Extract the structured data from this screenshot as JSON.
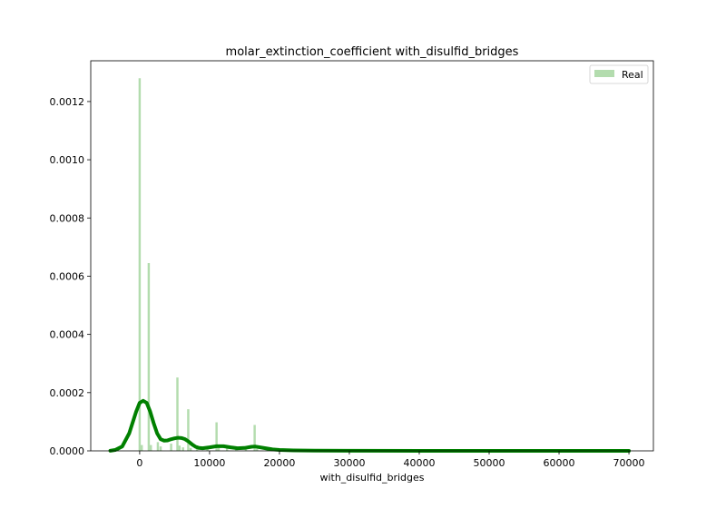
{
  "chart_data": {
    "type": "histogram",
    "title": "molar_extinction_coefficient  with_disulfid_bridges",
    "xlabel": "with_disulfid_bridges",
    "ylabel": "",
    "xlim": [
      -7000,
      73500
    ],
    "ylim": [
      0,
      0.00134
    ],
    "x_ticks": [
      0,
      10000,
      20000,
      30000,
      40000,
      50000,
      60000,
      70000
    ],
    "x_tick_labels": [
      "0",
      "10000",
      "20000",
      "30000",
      "40000",
      "50000",
      "60000",
      "70000"
    ],
    "y_ticks": [
      0,
      0.0002,
      0.0004,
      0.0006,
      0.0008,
      0.001,
      0.0012
    ],
    "y_tick_labels": [
      "0.0000",
      "0.0002",
      "0.0004",
      "0.0006",
      "0.0008",
      "0.0010",
      "0.0012"
    ],
    "legend": {
      "position": "upper right",
      "entries": [
        {
          "label": "Real",
          "color": "#b3dcae"
        }
      ]
    },
    "bar_color": "#b3dcae",
    "kde_color": "#008000",
    "grid": false,
    "histogram": {
      "bin_width": 320,
      "bars": [
        {
          "x": 0,
          "value": 0.00128
        },
        {
          "x": 1300,
          "value": 0.000645
        },
        {
          "x": 5400,
          "value": 0.000252
        },
        {
          "x": 6950,
          "value": 0.000143
        },
        {
          "x": 11000,
          "value": 9.8e-05
        },
        {
          "x": 16450,
          "value": 8.9e-05
        },
        {
          "x": 300,
          "value": 2e-05
        },
        {
          "x": 1600,
          "value": 2e-05
        },
        {
          "x": 2600,
          "value": 3e-05
        },
        {
          "x": 3000,
          "value": 1.5e-05
        },
        {
          "x": 4500,
          "value": 2.5e-05
        },
        {
          "x": 5700,
          "value": 1.8e-05
        },
        {
          "x": 6200,
          "value": 1.2e-05
        },
        {
          "x": 7300,
          "value": 1e-05
        },
        {
          "x": 8200,
          "value": 8e-06
        },
        {
          "x": 9700,
          "value": 6e-06
        },
        {
          "x": 11300,
          "value": 1e-05
        },
        {
          "x": 12500,
          "value": 1.4e-05
        },
        {
          "x": 13800,
          "value": 6e-06
        },
        {
          "x": 15200,
          "value": 5e-06
        },
        {
          "x": 16800,
          "value": 7e-06
        }
      ]
    },
    "kde": {
      "x": [
        -4200,
        -3500,
        -2500,
        -1500,
        -500,
        0,
        500,
        1000,
        1500,
        2000,
        2500,
        3000,
        3500,
        4000,
        4500,
        5000,
        5500,
        6000,
        6500,
        7000,
        7500,
        8000,
        8500,
        9000,
        10000,
        11000,
        12000,
        13000,
        14000,
        15000,
        16000,
        16500,
        17000,
        18000,
        19000,
        20000,
        22000,
        25000,
        30000,
        40000,
        50000,
        60000,
        70000
      ],
      "y": [
        5e-07,
        3e-06,
        1.5e-05,
        6e-05,
        0.000135,
        0.000165,
        0.000172,
        0.000165,
        0.000135,
        9.5e-05,
        6e-05,
        4e-05,
        3.5e-05,
        3.6e-05,
        4e-05,
        4.3e-05,
        4.5e-05,
        4.4e-05,
        4e-05,
        3.2e-05,
        2.2e-05,
        1.4e-05,
        1e-05,
        9e-06,
        1.2e-05,
        1.6e-05,
        1.6e-05,
        1.2e-05,
        9e-06,
        1e-05,
        1.4e-05,
        1.5e-05,
        1.3e-05,
        9e-06,
        5e-06,
        3e-06,
        1.5e-06,
        8e-07,
        3e-07,
        1e-07,
        5e-08,
        2e-08,
        1e-08
      ]
    }
  }
}
